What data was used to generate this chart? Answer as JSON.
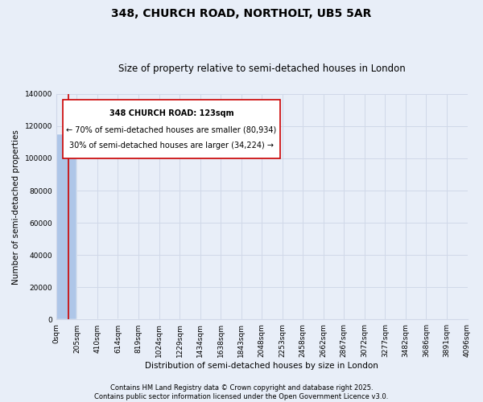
{
  "title": "348, CHURCH ROAD, NORTHOLT, UB5 5AR",
  "subtitle": "Size of property relative to semi-detached houses in London",
  "xlabel": "Distribution of semi-detached houses by size in London",
  "ylabel": "Number of semi-detached properties",
  "property_size": 123,
  "annotation_text_1": "348 CHURCH ROAD: 123sqm",
  "annotation_text_2": "← 70% of semi-detached houses are smaller (80,934)",
  "annotation_text_3": "30% of semi-detached houses are larger (34,224) →",
  "bar_color": "#aec6e8",
  "bar_edge_color": "#aec6e8",
  "vline_color": "#cc0000",
  "grid_color": "#d0d8e8",
  "background_color": "#e8eef8",
  "fig_background_color": "#e8eef8",
  "ylim": [
    0,
    140000
  ],
  "xlim_min": 0,
  "xlim_max": 4096,
  "bin_edges": [
    0,
    205,
    410,
    614,
    819,
    1024,
    1229,
    1434,
    1638,
    1843,
    2048,
    2253,
    2458,
    2662,
    2867,
    3072,
    3277,
    3482,
    3686,
    3891,
    4096
  ],
  "tick_labels": [
    "0sqm",
    "205sqm",
    "410sqm",
    "614sqm",
    "819sqm",
    "1024sqm",
    "1229sqm",
    "1434sqm",
    "1638sqm",
    "1843sqm",
    "2048sqm",
    "2253sqm",
    "2458sqm",
    "2662sqm",
    "2867sqm",
    "3072sqm",
    "3277sqm",
    "3482sqm",
    "3686sqm",
    "3891sqm",
    "4096sqm"
  ],
  "bar_heights": [
    115158,
    33,
    2,
    1,
    0,
    0,
    0,
    0,
    0,
    0,
    0,
    0,
    0,
    0,
    0,
    0,
    0,
    0,
    0,
    0
  ],
  "footer_line1": "Contains HM Land Registry data © Crown copyright and database right 2025.",
  "footer_line2": "Contains public sector information licensed under the Open Government Licence v3.0.",
  "title_fontsize": 10,
  "subtitle_fontsize": 8.5,
  "axis_label_fontsize": 7.5,
  "tick_fontsize": 6.5,
  "footer_fontsize": 6,
  "annotation_fontsize": 7,
  "ytick_values": [
    0,
    20000,
    40000,
    60000,
    80000,
    100000,
    120000,
    140000
  ]
}
